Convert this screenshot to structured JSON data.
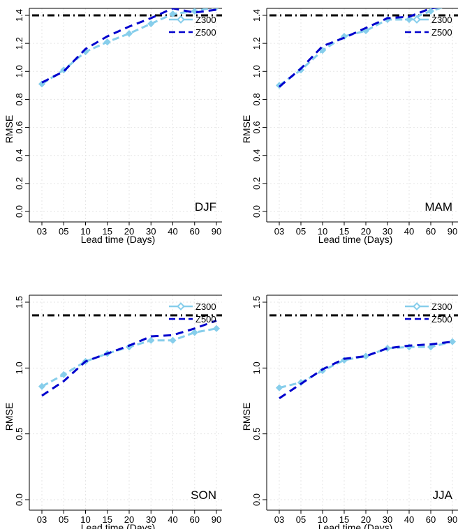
{
  "figure": {
    "series_styles": {
      "Z300": {
        "color": "#87ceeb",
        "dash": "10,5",
        "marker": "diamond-open"
      },
      "Z500": {
        "color": "#0000cd",
        "dash": "11,7",
        "marker": "none"
      },
      "reference": {
        "color": "#000000",
        "dash": "10,5,2,5"
      }
    }
  },
  "chart_data": [
    {
      "type": "line",
      "label": "DJF",
      "xlabel": "Lead time (Days)",
      "ylabel": "RMSE",
      "categories": [
        "03",
        "05",
        "10",
        "15",
        "20",
        "30",
        "40",
        "60",
        "90"
      ],
      "ylim": [
        0,
        1.4
      ],
      "yticks": [
        "0.0",
        "0.2",
        "0.4",
        "0.6",
        "0.8",
        "1.0",
        "1.2",
        "1.4"
      ],
      "grid": true,
      "legend": "top-right",
      "reference_line": 1.4,
      "series": [
        {
          "name": "Z300",
          "values": [
            0.91,
            1.01,
            1.14,
            1.21,
            1.27,
            1.34,
            1.41,
            1.43,
            1.46
          ]
        },
        {
          "name": "Z500",
          "values": [
            0.92,
            1.0,
            1.16,
            1.25,
            1.32,
            1.38,
            1.45,
            1.42,
            1.44
          ]
        }
      ]
    },
    {
      "type": "line",
      "label": "MAM",
      "xlabel": "Lead time (Days)",
      "ylabel": "RMSE",
      "categories": [
        "03",
        "05",
        "10",
        "15",
        "20",
        "30",
        "40",
        "60",
        "90"
      ],
      "ylim": [
        0,
        1.4
      ],
      "yticks": [
        "0.0",
        "0.2",
        "0.4",
        "0.6",
        "0.8",
        "1.0",
        "1.2",
        "1.4"
      ],
      "grid": true,
      "legend": "top-right",
      "reference_line": 1.4,
      "series": [
        {
          "name": "Z300",
          "values": [
            0.9,
            1.01,
            1.15,
            1.25,
            1.29,
            1.37,
            1.37,
            1.43,
            1.48
          ]
        },
        {
          "name": "Z500",
          "values": [
            0.89,
            1.02,
            1.18,
            1.24,
            1.31,
            1.38,
            1.39,
            1.45,
            1.47
          ]
        }
      ]
    },
    {
      "type": "line",
      "label": "SON",
      "xlabel": "Lead time (Days)",
      "ylabel": "RMSE",
      "categories": [
        "03",
        "05",
        "10",
        "15",
        "20",
        "30",
        "40",
        "60",
        "90"
      ],
      "ylim": [
        0,
        1.5
      ],
      "yticks": [
        "0.0",
        "0.5",
        "1.0",
        "1.5"
      ],
      "grid": true,
      "legend": "top-right",
      "reference_line": 1.4,
      "series": [
        {
          "name": "Z300",
          "values": [
            0.86,
            0.95,
            1.05,
            1.11,
            1.16,
            1.21,
            1.21,
            1.27,
            1.3
          ]
        },
        {
          "name": "Z500",
          "values": [
            0.79,
            0.9,
            1.05,
            1.11,
            1.17,
            1.24,
            1.25,
            1.3,
            1.36
          ]
        }
      ]
    },
    {
      "type": "line",
      "label": "JJA",
      "xlabel": "Lead time (Days)",
      "ylabel": "RMSE",
      "categories": [
        "03",
        "05",
        "10",
        "15",
        "20",
        "30",
        "40",
        "60",
        "90"
      ],
      "ylim": [
        0,
        1.5
      ],
      "yticks": [
        "0.0",
        "0.5",
        "1.0",
        "1.5"
      ],
      "grid": true,
      "legend": "top-right",
      "reference_line": 1.4,
      "series": [
        {
          "name": "Z300",
          "values": [
            0.85,
            0.89,
            0.98,
            1.06,
            1.09,
            1.15,
            1.16,
            1.16,
            1.2
          ]
        },
        {
          "name": "Z500",
          "values": [
            0.77,
            0.88,
            0.99,
            1.07,
            1.09,
            1.15,
            1.17,
            1.18,
            1.2
          ]
        }
      ]
    }
  ]
}
